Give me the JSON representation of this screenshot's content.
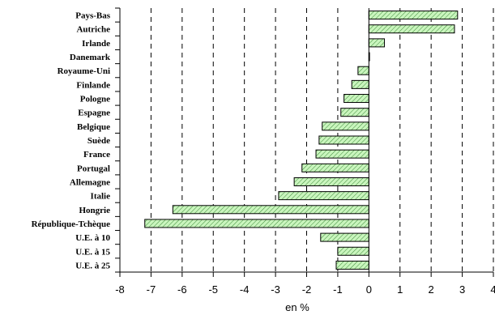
{
  "chart_data": {
    "type": "bar",
    "orientation": "horizontal",
    "categories": [
      "Pays-Bas",
      "Autriche",
      "Irlande",
      "Danemark",
      "Royaume-Uni",
      "Finlande",
      "Pologne",
      "Espagne",
      "Belgique",
      "Suède",
      "France",
      "Portugal",
      "Allemagne",
      "Italie",
      "Hongrie",
      "République-Tchèque",
      "U.E. à 10",
      "U.E. à 15",
      "U.E. à 25"
    ],
    "values": [
      2.85,
      2.75,
      0.5,
      0.0,
      -0.35,
      -0.55,
      -0.8,
      -0.9,
      -1.5,
      -1.6,
      -1.7,
      -2.15,
      -2.4,
      -2.9,
      -6.3,
      -7.2,
      -1.55,
      -1.0,
      -1.05
    ],
    "xlabel": "en %",
    "xlim": [
      -8,
      4
    ],
    "xticks": [
      -8,
      -7,
      -6,
      -5,
      -4,
      -3,
      -2,
      -1,
      0,
      1,
      2,
      3,
      4
    ],
    "grid": "vertical dashed",
    "bar_color": "#b6f0a8",
    "bar_pattern": "diagonal-hatch"
  }
}
